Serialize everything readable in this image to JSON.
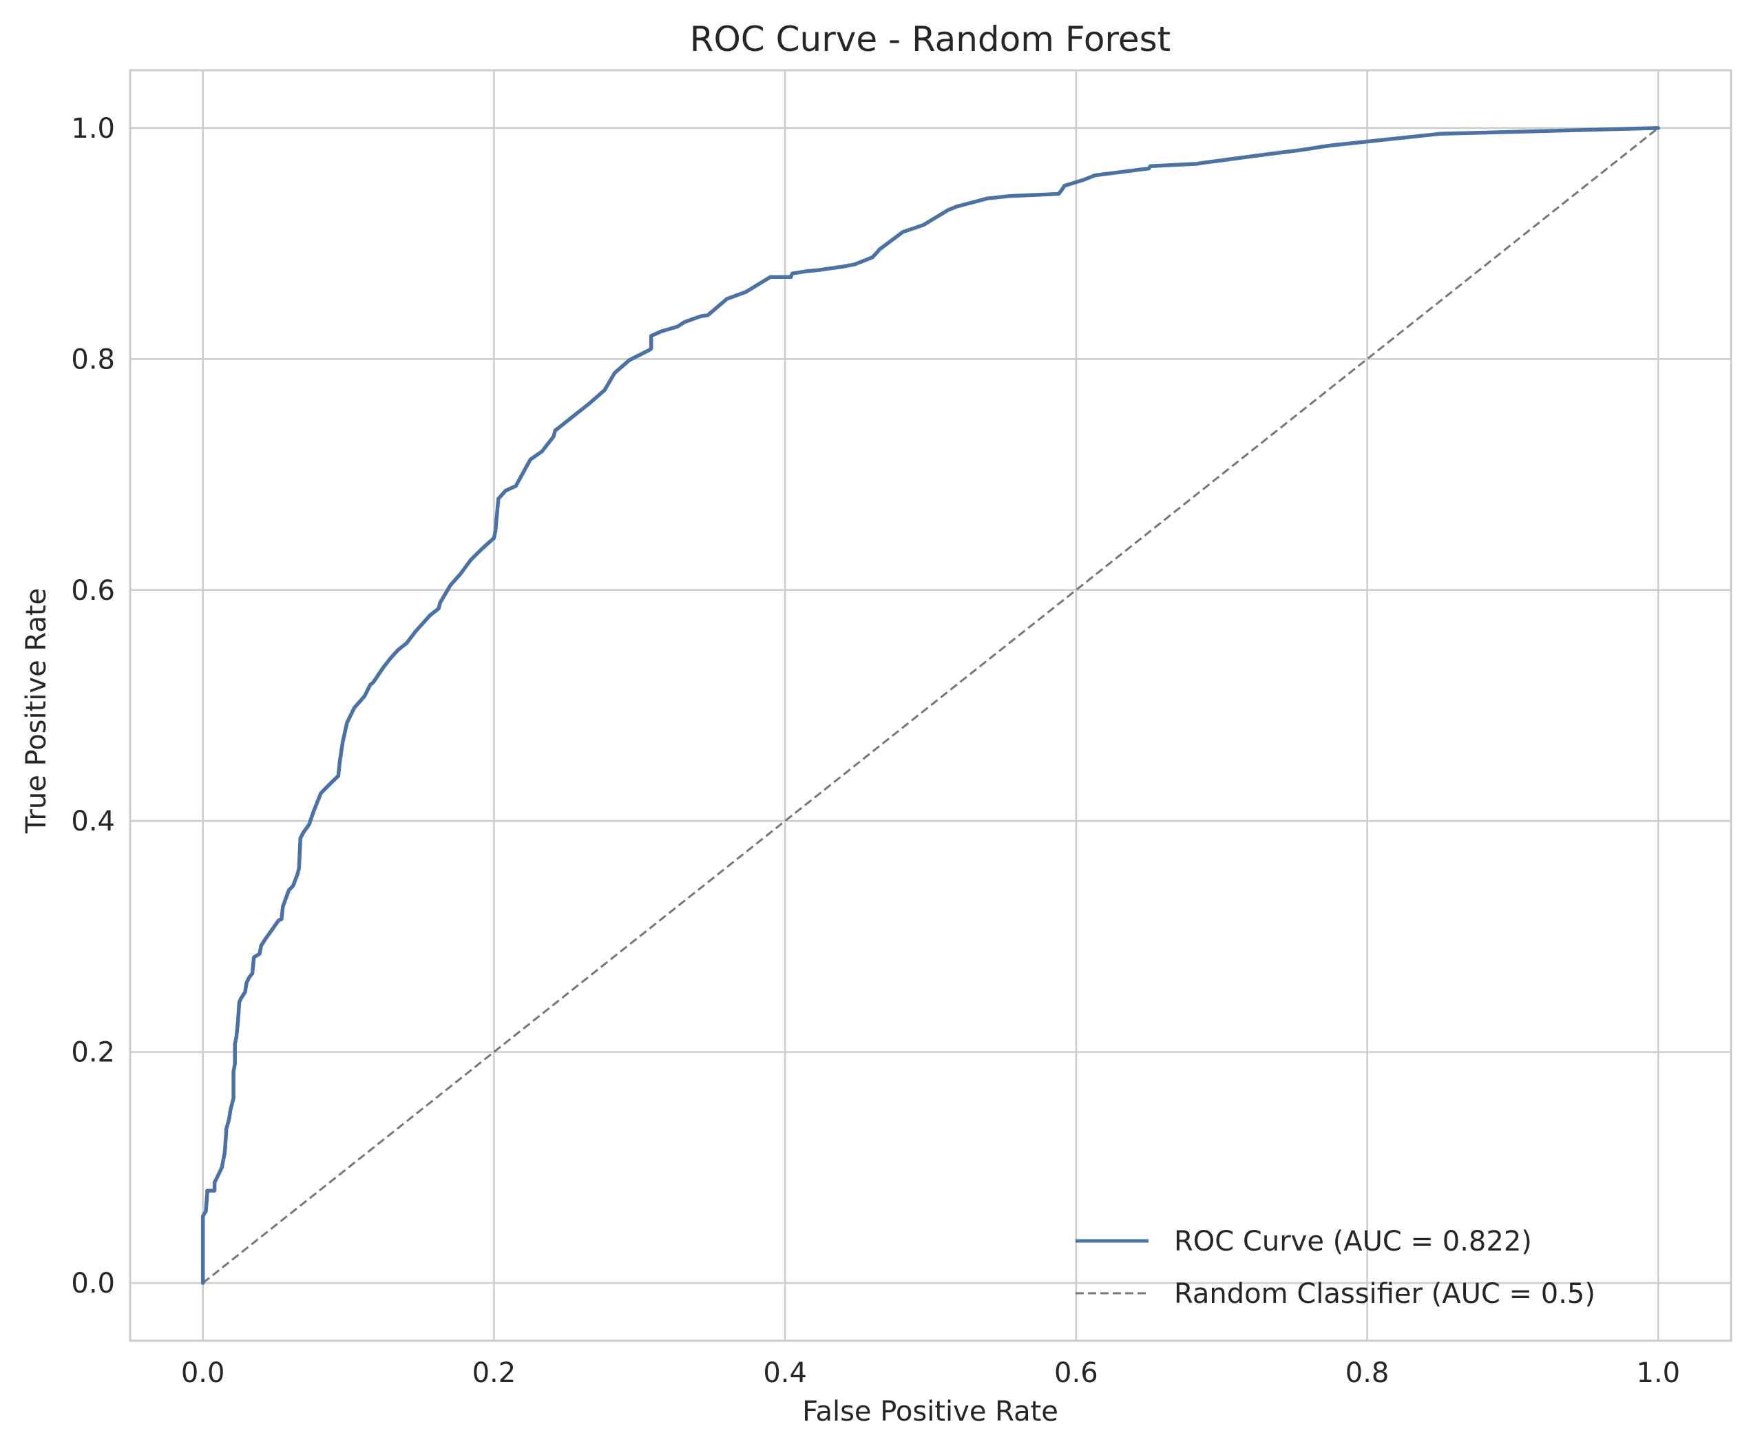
{
  "chart_data": {
    "type": "line",
    "title": "ROC Curve - Random Forest",
    "xlabel": "False Positive Rate",
    "ylabel": "True Positive Rate",
    "xlim": [
      -0.05,
      1.05
    ],
    "ylim": [
      -0.05,
      1.05
    ],
    "xticks": [
      0.0,
      0.2,
      0.4,
      0.6,
      0.8,
      1.0
    ],
    "yticks": [
      0.0,
      0.2,
      0.4,
      0.6,
      0.8,
      1.0
    ],
    "xtick_labels": [
      "0.0",
      "0.2",
      "0.4",
      "0.6",
      "0.8",
      "1.0"
    ],
    "ytick_labels": [
      "0.0",
      "0.2",
      "0.4",
      "0.6",
      "0.8",
      "1.0"
    ],
    "grid": true,
    "legend_position": "lower-right",
    "series": [
      {
        "name": "ROC Curve (AUC = 0.822)",
        "color": "#4c72a4",
        "style": "solid",
        "x": [
          0.0,
          0.0,
          0.0,
          0.002,
          0.003,
          0.003,
          0.008,
          0.008,
          0.01,
          0.013,
          0.015,
          0.016,
          0.016,
          0.018,
          0.019,
          0.021,
          0.021,
          0.022,
          0.022,
          0.023,
          0.024,
          0.025,
          0.026,
          0.029,
          0.03,
          0.032,
          0.034,
          0.035,
          0.039,
          0.04,
          0.043,
          0.047,
          0.052,
          0.054,
          0.055,
          0.059,
          0.062,
          0.065,
          0.066,
          0.067,
          0.069,
          0.073,
          0.076,
          0.081,
          0.088,
          0.093,
          0.094,
          0.096,
          0.099,
          0.104,
          0.111,
          0.115,
          0.117,
          0.124,
          0.129,
          0.134,
          0.14,
          0.146,
          0.156,
          0.162,
          0.163,
          0.17,
          0.177,
          0.184,
          0.192,
          0.2,
          0.201,
          0.203,
          0.208,
          0.215,
          0.225,
          0.233,
          0.241,
          0.242,
          0.255,
          0.266,
          0.276,
          0.283,
          0.293,
          0.307,
          0.308,
          0.308,
          0.315,
          0.326,
          0.331,
          0.342,
          0.347,
          0.36,
          0.373,
          0.39,
          0.404,
          0.405,
          0.415,
          0.423,
          0.44,
          0.448,
          0.46,
          0.463,
          0.465,
          0.481,
          0.495,
          0.512,
          0.518,
          0.539,
          0.554,
          0.588,
          0.59,
          0.592,
          0.605,
          0.613,
          0.65,
          0.651,
          0.683,
          0.688,
          0.73,
          0.755,
          0.77,
          0.776,
          0.85,
          1.0
        ],
        "y": [
          0.0,
          0.052,
          0.058,
          0.062,
          0.078,
          0.08,
          0.08,
          0.087,
          0.092,
          0.1,
          0.113,
          0.13,
          0.133,
          0.142,
          0.15,
          0.16,
          0.183,
          0.19,
          0.207,
          0.213,
          0.225,
          0.243,
          0.246,
          0.252,
          0.26,
          0.265,
          0.268,
          0.282,
          0.285,
          0.292,
          0.298,
          0.305,
          0.314,
          0.315,
          0.326,
          0.34,
          0.344,
          0.354,
          0.359,
          0.385,
          0.39,
          0.397,
          0.408,
          0.424,
          0.433,
          0.439,
          0.451,
          0.468,
          0.485,
          0.498,
          0.508,
          0.518,
          0.52,
          0.533,
          0.541,
          0.548,
          0.554,
          0.564,
          0.578,
          0.584,
          0.589,
          0.604,
          0.614,
          0.626,
          0.636,
          0.645,
          0.651,
          0.679,
          0.686,
          0.69,
          0.713,
          0.72,
          0.733,
          0.738,
          0.751,
          0.762,
          0.773,
          0.788,
          0.799,
          0.808,
          0.809,
          0.82,
          0.824,
          0.828,
          0.832,
          0.837,
          0.838,
          0.852,
          0.858,
          0.871,
          0.871,
          0.874,
          0.876,
          0.877,
          0.88,
          0.882,
          0.888,
          0.892,
          0.895,
          0.91,
          0.916,
          0.929,
          0.932,
          0.939,
          0.941,
          0.943,
          0.946,
          0.95,
          0.955,
          0.959,
          0.965,
          0.967,
          0.969,
          0.97,
          0.977,
          0.981,
          0.984,
          0.985,
          0.995,
          1.0
        ]
      },
      {
        "name": "Random Classifier (AUC = 0.5)",
        "color": "#777777",
        "style": "dashed",
        "x": [
          0.0,
          1.0
        ],
        "y": [
          0.0,
          1.0
        ]
      }
    ]
  },
  "colors": {
    "grid": "#cccccc",
    "spine": "#cccccc",
    "text": "#262626",
    "background": "#ffffff"
  }
}
